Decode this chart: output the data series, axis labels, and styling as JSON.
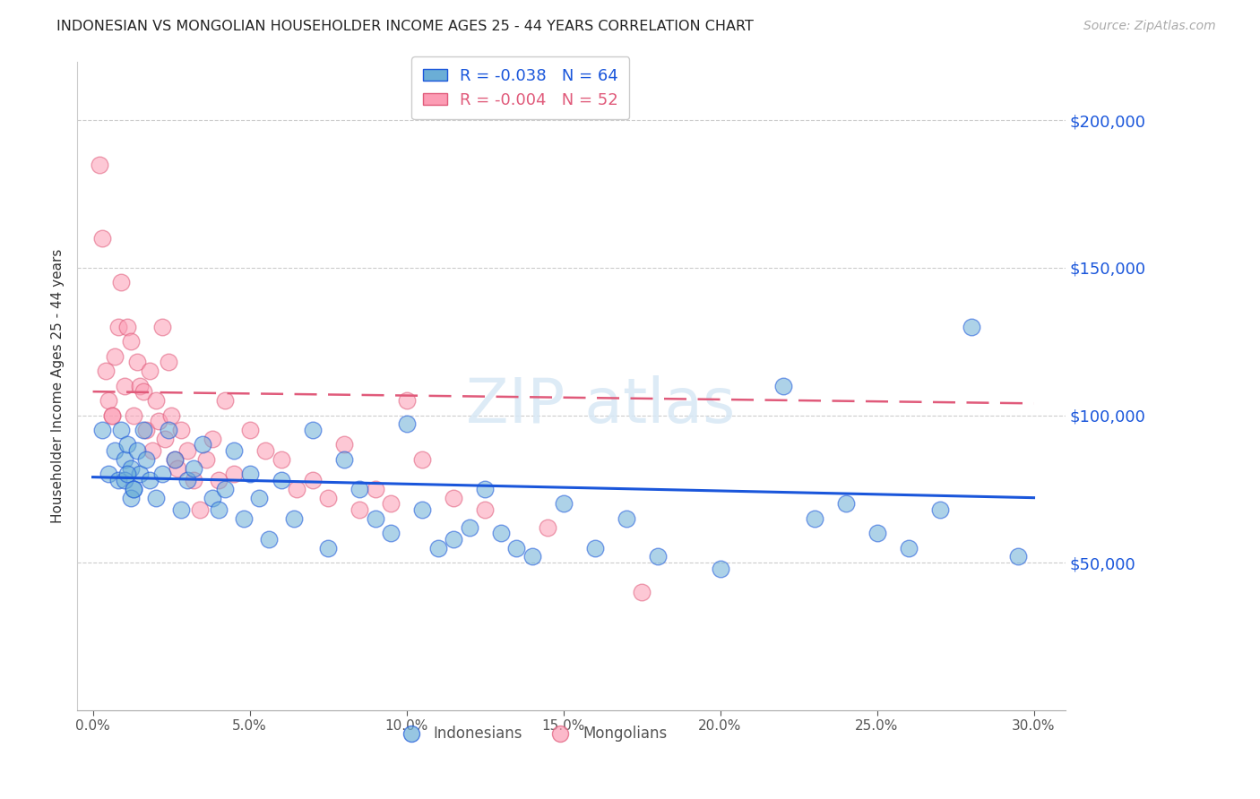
{
  "title": "INDONESIAN VS MONGOLIAN HOUSEHOLDER INCOME AGES 25 - 44 YEARS CORRELATION CHART",
  "source": "Source: ZipAtlas.com",
  "ylabel": "Householder Income Ages 25 - 44 years",
  "xlabel_ticks": [
    "0.0%",
    "5.0%",
    "10.0%",
    "15.0%",
    "20.0%",
    "25.0%",
    "30.0%"
  ],
  "xlabel_vals": [
    0.0,
    5.0,
    10.0,
    15.0,
    20.0,
    25.0,
    30.0
  ],
  "ylabel_ticks": [
    "$50,000",
    "$100,000",
    "$150,000",
    "$200,000"
  ],
  "ylabel_vals": [
    50000,
    100000,
    150000,
    200000
  ],
  "ylim": [
    0,
    220000
  ],
  "xlim": [
    -0.5,
    31
  ],
  "blue_color": "#6baed6",
  "pink_color": "#fc9cb4",
  "trend_blue": "#1a56db",
  "trend_pink": "#e05a7a",
  "R_blue": -0.038,
  "N_blue": 64,
  "R_pink": -0.004,
  "N_pink": 52,
  "legend_label_blue": "Indonesians",
  "legend_label_pink": "Mongolians",
  "blue_trend_x": [
    0,
    30
  ],
  "blue_trend_y": [
    79000,
    72000
  ],
  "pink_trend_x": [
    0,
    30
  ],
  "pink_trend_y": [
    108000,
    104000
  ],
  "blue_scatter_x": [
    0.3,
    0.5,
    0.7,
    0.8,
    0.9,
    1.0,
    1.1,
    1.2,
    1.3,
    1.4,
    1.5,
    1.6,
    1.7,
    1.8,
    2.0,
    2.2,
    2.4,
    2.6,
    2.8,
    3.0,
    3.2,
    3.5,
    3.8,
    4.0,
    4.2,
    4.5,
    4.8,
    5.0,
    5.3,
    5.6,
    6.0,
    6.4,
    7.0,
    7.5,
    8.0,
    8.5,
    9.0,
    9.5,
    10.0,
    10.5,
    11.0,
    11.5,
    12.0,
    12.5,
    13.0,
    13.5,
    14.0,
    15.0,
    16.0,
    17.0,
    18.0,
    20.0,
    22.0,
    23.0,
    24.0,
    25.0,
    26.0,
    27.0,
    28.0,
    29.5,
    1.0,
    1.1,
    1.2,
    1.3
  ],
  "blue_scatter_y": [
    95000,
    80000,
    88000,
    78000,
    95000,
    85000,
    90000,
    82000,
    75000,
    88000,
    80000,
    95000,
    85000,
    78000,
    72000,
    80000,
    95000,
    85000,
    68000,
    78000,
    82000,
    90000,
    72000,
    68000,
    75000,
    88000,
    65000,
    80000,
    72000,
    58000,
    78000,
    65000,
    95000,
    55000,
    85000,
    75000,
    65000,
    60000,
    97000,
    68000,
    55000,
    58000,
    62000,
    75000,
    60000,
    55000,
    52000,
    70000,
    55000,
    65000,
    52000,
    48000,
    110000,
    65000,
    70000,
    60000,
    55000,
    68000,
    130000,
    52000,
    78000,
    80000,
    72000,
    75000
  ],
  "pink_scatter_x": [
    0.2,
    0.3,
    0.5,
    0.6,
    0.7,
    0.8,
    0.9,
    1.0,
    1.1,
    1.2,
    1.3,
    1.4,
    1.5,
    1.6,
    1.7,
    1.8,
    1.9,
    2.0,
    2.1,
    2.2,
    2.3,
    2.4,
    2.5,
    2.6,
    2.7,
    2.8,
    3.0,
    3.2,
    3.4,
    3.6,
    3.8,
    4.0,
    4.2,
    4.5,
    5.0,
    5.5,
    6.0,
    6.5,
    7.0,
    7.5,
    8.0,
    8.5,
    9.0,
    9.5,
    10.0,
    10.5,
    11.5,
    12.5,
    14.5,
    17.5,
    0.4,
    0.6
  ],
  "pink_scatter_y": [
    185000,
    160000,
    105000,
    100000,
    120000,
    130000,
    145000,
    110000,
    130000,
    125000,
    100000,
    118000,
    110000,
    108000,
    95000,
    115000,
    88000,
    105000,
    98000,
    130000,
    92000,
    118000,
    100000,
    85000,
    82000,
    95000,
    88000,
    78000,
    68000,
    85000,
    92000,
    78000,
    105000,
    80000,
    95000,
    88000,
    85000,
    75000,
    78000,
    72000,
    90000,
    68000,
    75000,
    70000,
    105000,
    85000,
    72000,
    68000,
    62000,
    40000,
    115000,
    100000
  ]
}
